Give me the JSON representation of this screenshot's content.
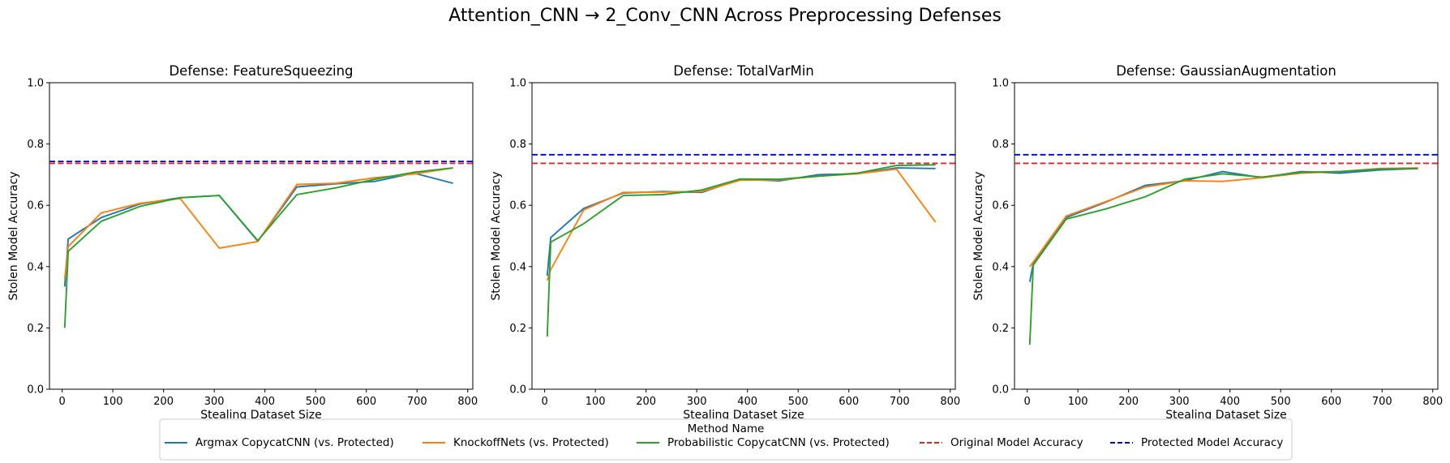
{
  "figure": {
    "title": "Attention_CNN → 2_Conv_CNN Across Preprocessing Defenses"
  },
  "legend": {
    "title": "Method Name",
    "entries": [
      {
        "label": "Argmax CopycatCNN (vs. Protected)",
        "color": "#1f77b4",
        "style": "solid"
      },
      {
        "label": "KnockoffNets (vs. Protected)",
        "color": "#ff7f0e",
        "style": "solid"
      },
      {
        "label": "Probabilistic CopycatCNN (vs. Protected)",
        "color": "#2ca02c",
        "style": "solid"
      },
      {
        "label": "Original Model Accuracy",
        "color": "#d62728",
        "style": "dashed"
      },
      {
        "label": "Protected Model Accuracy",
        "color": "#0000cc",
        "style": "dashed"
      }
    ]
  },
  "chart_data": [
    {
      "type": "line",
      "title": "Defense: FeatureSqueezing",
      "xlabel": "Stealing Dataset Size",
      "ylabel": "Stolen Model Accuracy",
      "xlim": [
        -25,
        810
      ],
      "ylim": [
        0,
        1
      ],
      "xticks": [
        "0",
        "100",
        "200",
        "300",
        "400",
        "500",
        "600",
        "700",
        "800"
      ],
      "yticks": [
        "0.0",
        "0.2",
        "0.4",
        "0.6",
        "0.8",
        "1.0"
      ],
      "grid": false,
      "original_accuracy": 0.737,
      "protected_accuracy": 0.743,
      "series": [
        {
          "name": "Argmax CopycatCNN (vs. Protected)",
          "color": "#1f77b4",
          "x": [
            5,
            12,
            77,
            155,
            233,
            310,
            386,
            463,
            540,
            617,
            694,
            771
          ],
          "y": [
            0.335,
            0.49,
            0.56,
            0.605,
            0.625,
            0.632,
            0.483,
            0.66,
            0.67,
            0.678,
            0.705,
            0.672
          ]
        },
        {
          "name": "KnockoffNets (vs. Protected)",
          "color": "#ff7f0e",
          "x": [
            5,
            12,
            77,
            155,
            233,
            310,
            386,
            463,
            540,
            617,
            694,
            771
          ],
          "y": [
            0.36,
            0.465,
            0.575,
            0.607,
            0.622,
            0.46,
            0.482,
            0.668,
            0.672,
            0.69,
            0.702,
            0.722
          ]
        },
        {
          "name": "Probabilistic CopycatCNN (vs. Protected)",
          "color": "#2ca02c",
          "x": [
            5,
            12,
            77,
            155,
            233,
            310,
            386,
            463,
            540,
            617,
            694,
            771
          ],
          "y": [
            0.2,
            0.45,
            0.548,
            0.597,
            0.625,
            0.632,
            0.485,
            0.635,
            0.657,
            0.685,
            0.708,
            0.722
          ]
        }
      ]
    },
    {
      "type": "line",
      "title": "Defense: TotalVarMin",
      "xlabel": "Stealing Dataset Size",
      "ylabel": "Stolen Model Accuracy",
      "xlim": [
        -25,
        810
      ],
      "ylim": [
        0,
        1
      ],
      "xticks": [
        "0",
        "100",
        "200",
        "300",
        "400",
        "500",
        "600",
        "700",
        "800"
      ],
      "yticks": [
        "0.0",
        "0.2",
        "0.4",
        "0.6",
        "0.8",
        "1.0"
      ],
      "grid": false,
      "original_accuracy": 0.737,
      "protected_accuracy": 0.765,
      "series": [
        {
          "name": "Argmax CopycatCNN (vs. Protected)",
          "color": "#1f77b4",
          "x": [
            5,
            12,
            77,
            155,
            233,
            310,
            386,
            463,
            540,
            617,
            694,
            771
          ],
          "y": [
            0.37,
            0.495,
            0.59,
            0.64,
            0.645,
            0.642,
            0.685,
            0.68,
            0.7,
            0.703,
            0.722,
            0.72
          ]
        },
        {
          "name": "KnockoffNets (vs. Protected)",
          "color": "#ff7f0e",
          "x": [
            5,
            12,
            77,
            155,
            233,
            310,
            386,
            463,
            540,
            617,
            694,
            771
          ],
          "y": [
            0.355,
            0.39,
            0.585,
            0.642,
            0.643,
            0.645,
            0.682,
            0.683,
            0.695,
            0.703,
            0.718,
            0.545
          ]
        },
        {
          "name": "Probabilistic CopycatCNN (vs. Protected)",
          "color": "#2ca02c",
          "x": [
            5,
            12,
            77,
            155,
            233,
            310,
            386,
            463,
            540,
            617,
            694,
            771
          ],
          "y": [
            0.172,
            0.48,
            0.54,
            0.632,
            0.635,
            0.65,
            0.686,
            0.685,
            0.695,
            0.705,
            0.73,
            0.732
          ]
        }
      ]
    },
    {
      "type": "line",
      "title": "Defense: GaussianAugmentation",
      "xlabel": "Stealing Dataset Size",
      "ylabel": "Stolen Model Accuracy",
      "xlim": [
        -25,
        810
      ],
      "ylim": [
        0,
        1
      ],
      "xticks": [
        "0",
        "100",
        "200",
        "300",
        "400",
        "500",
        "600",
        "700",
        "800"
      ],
      "yticks": [
        "0.0",
        "0.2",
        "0.4",
        "0.6",
        "0.8",
        "1.0"
      ],
      "grid": false,
      "original_accuracy": 0.737,
      "protected_accuracy": 0.765,
      "series": [
        {
          "name": "Argmax CopycatCNN (vs. Protected)",
          "color": "#1f77b4",
          "x": [
            5,
            12,
            77,
            155,
            233,
            310,
            386,
            463,
            540,
            617,
            694,
            771
          ],
          "y": [
            0.35,
            0.41,
            0.56,
            0.61,
            0.665,
            0.68,
            0.71,
            0.69,
            0.71,
            0.705,
            0.715,
            0.72
          ]
        },
        {
          "name": "KnockoffNets (vs. Protected)",
          "color": "#ff7f0e",
          "x": [
            5,
            12,
            77,
            155,
            233,
            310,
            386,
            463,
            540,
            617,
            694,
            771
          ],
          "y": [
            0.4,
            0.415,
            0.565,
            0.612,
            0.66,
            0.68,
            0.678,
            0.69,
            0.705,
            0.71,
            0.72,
            0.722
          ]
        },
        {
          "name": "Probabilistic CopycatCNN (vs. Protected)",
          "color": "#2ca02c",
          "x": [
            5,
            12,
            77,
            155,
            233,
            310,
            386,
            463,
            540,
            617,
            694,
            771
          ],
          "y": [
            0.145,
            0.405,
            0.555,
            0.588,
            0.628,
            0.685,
            0.703,
            0.692,
            0.708,
            0.71,
            0.718,
            0.72
          ]
        }
      ]
    }
  ]
}
